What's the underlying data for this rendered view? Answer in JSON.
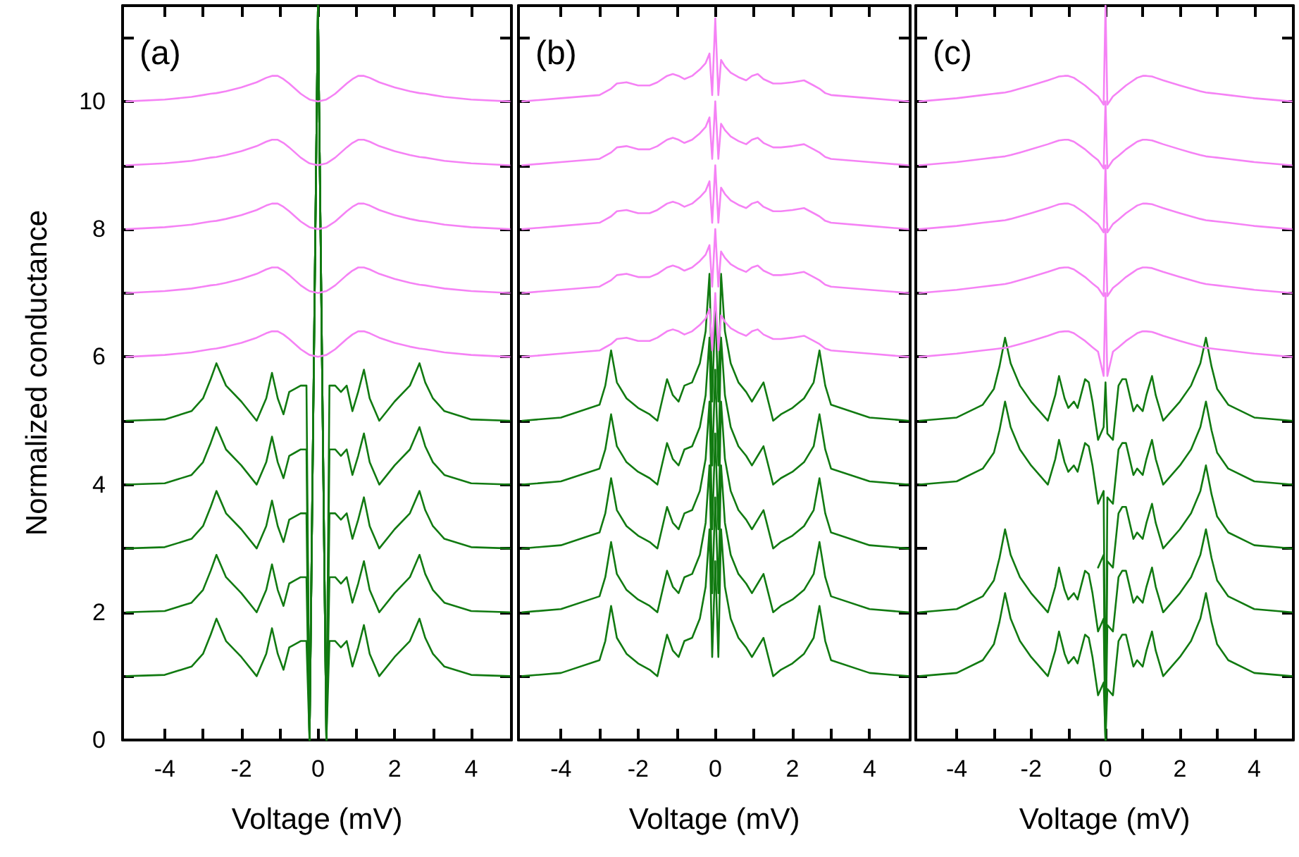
{
  "chart_data": [
    {
      "type": "line",
      "xlabel": "Voltage (mV)",
      "ylabel": "Normalized conductance",
      "annotations": [
        "(a)"
      ],
      "marker": "none",
      "line_style": "solid",
      "xlim": [
        -5.1,
        5.05
      ],
      "ylim": [
        0,
        11.5
      ],
      "xticks": [
        -4,
        {
          "value": -3,
          "label": null
        },
        -2,
        {
          "value": -1,
          "label": null
        },
        0,
        {
          "value": 1,
          "label": null
        },
        2,
        {
          "value": 3,
          "label": null
        },
        4
      ],
      "yticks": [
        0,
        {
          "value": 1,
          "label": null
        },
        2,
        {
          "value": 3,
          "label": null
        },
        4,
        {
          "value": 5,
          "label": null
        },
        6,
        {
          "value": 7,
          "label": null
        },
        8,
        {
          "value": 9,
          "label": null
        },
        10,
        {
          "value": 11,
          "label": null
        }
      ],
      "x": [
        -5,
        -4,
        -3.3,
        -3,
        -2.8,
        -2.65,
        -2.4,
        -2,
        -1.6,
        -1.35,
        -1.2,
        -1.05,
        -0.9,
        -0.75,
        -0.6,
        -0.45,
        -0.3,
        -0.22,
        0,
        0.22,
        0.3,
        0.45,
        0.6,
        0.75,
        0.9,
        1.05,
        1.2,
        1.35,
        1.6,
        2,
        2.4,
        2.65,
        2.8,
        3,
        3.3,
        4,
        5
      ],
      "series": [
        {
          "color": "#117a11",
          "values": [
            1,
            1.02,
            1.15,
            1.35,
            1.65,
            1.9,
            1.55,
            1.3,
            1,
            1.35,
            1.75,
            1.35,
            1.1,
            1.45,
            1.5,
            1.55,
            1.55,
            0,
            11.5,
            0,
            1.55,
            1.55,
            1.45,
            1.55,
            1.15,
            1.45,
            1.8,
            1.35,
            1,
            1.3,
            1.55,
            1.9,
            1.6,
            1.35,
            1.15,
            1.02,
            1
          ]
        },
        {
          "color": "#117a11",
          "values": [
            2,
            2.02,
            2.15,
            2.35,
            2.65,
            2.9,
            2.55,
            2.3,
            2,
            2.35,
            2.75,
            2.35,
            2.1,
            2.45,
            2.5,
            2.55,
            2.55,
            0,
            11.5,
            0,
            2.55,
            2.55,
            2.45,
            2.55,
            2.15,
            2.45,
            2.8,
            2.35,
            2,
            2.3,
            2.55,
            2.9,
            2.6,
            2.35,
            2.15,
            2.02,
            2
          ]
        },
        {
          "color": "#117a11",
          "values": [
            3,
            3.02,
            3.15,
            3.35,
            3.65,
            3.9,
            3.55,
            3.3,
            3,
            3.35,
            3.75,
            3.35,
            3.1,
            3.45,
            3.5,
            3.55,
            3.55,
            0,
            11.5,
            0,
            3.55,
            3.55,
            3.45,
            3.55,
            3.15,
            3.45,
            3.8,
            3.35,
            3,
            3.3,
            3.55,
            3.9,
            3.6,
            3.35,
            3.15,
            3.02,
            3
          ]
        },
        {
          "color": "#117a11",
          "values": [
            4,
            4.02,
            4.15,
            4.35,
            4.65,
            4.9,
            4.55,
            4.3,
            4,
            4.35,
            4.75,
            4.35,
            4.1,
            4.45,
            4.5,
            4.55,
            4.55,
            0,
            11.5,
            0,
            4.55,
            4.55,
            4.45,
            4.55,
            4.15,
            4.45,
            4.8,
            4.35,
            4,
            4.3,
            4.55,
            4.9,
            4.6,
            4.35,
            4.15,
            4.02,
            4
          ]
        },
        {
          "color": "#117a11",
          "values": [
            5,
            5.02,
            5.15,
            5.35,
            5.65,
            5.9,
            5.55,
            5.3,
            5,
            5.35,
            5.75,
            5.35,
            5.1,
            5.45,
            5.5,
            5.55,
            5.55,
            0,
            11.5,
            0,
            5.55,
            5.55,
            5.45,
            5.55,
            5.15,
            5.45,
            5.8,
            5.35,
            5,
            5.3,
            5.55,
            5.9,
            5.6,
            5.35,
            5.15,
            5.02,
            5
          ]
        },
        {
          "color": "#f582f5",
          "values": [
            6,
            6.03,
            6.07,
            6.1,
            6.12,
            6.13,
            6.16,
            6.22,
            6.3,
            6.37,
            6.4,
            6.4,
            6.35,
            6.28,
            6.2,
            6.12,
            6.06,
            6.03,
            6,
            6.03,
            6.06,
            6.12,
            6.2,
            6.28,
            6.35,
            6.4,
            6.4,
            6.37,
            6.3,
            6.22,
            6.16,
            6.13,
            6.12,
            6.1,
            6.07,
            6.03,
            6
          ]
        },
        {
          "color": "#f582f5",
          "values": [
            7,
            7.03,
            7.07,
            7.1,
            7.12,
            7.13,
            7.16,
            7.22,
            7.3,
            7.37,
            7.4,
            7.4,
            7.35,
            7.28,
            7.2,
            7.12,
            7.06,
            7.03,
            7,
            7.03,
            7.06,
            7.12,
            7.2,
            7.28,
            7.35,
            7.4,
            7.4,
            7.37,
            7.3,
            7.22,
            7.16,
            7.13,
            7.12,
            7.1,
            7.07,
            7.03,
            7
          ]
        },
        {
          "color": "#f582f5",
          "values": [
            8,
            8.03,
            8.07,
            8.1,
            8.12,
            8.13,
            8.16,
            8.22,
            8.3,
            8.37,
            8.4,
            8.4,
            8.35,
            8.28,
            8.2,
            8.12,
            8.06,
            8.03,
            8,
            8.03,
            8.06,
            8.12,
            8.2,
            8.28,
            8.35,
            8.4,
            8.4,
            8.37,
            8.3,
            8.22,
            8.16,
            8.13,
            8.12,
            8.1,
            8.07,
            8.03,
            8
          ]
        },
        {
          "color": "#f582f5",
          "values": [
            9,
            9.03,
            9.07,
            9.1,
            9.12,
            9.13,
            9.16,
            9.22,
            9.3,
            9.37,
            9.4,
            9.4,
            9.35,
            9.28,
            9.2,
            9.12,
            9.06,
            9.03,
            9,
            9.03,
            9.06,
            9.12,
            9.2,
            9.28,
            9.35,
            9.4,
            9.4,
            9.37,
            9.3,
            9.22,
            9.16,
            9.13,
            9.12,
            9.1,
            9.07,
            9.03,
            9
          ]
        },
        {
          "color": "#f582f5",
          "values": [
            10,
            10.03,
            10.07,
            10.1,
            10.12,
            10.13,
            10.16,
            10.22,
            10.3,
            10.37,
            10.4,
            10.4,
            10.35,
            10.28,
            10.2,
            10.12,
            10.06,
            10.03,
            10,
            10.03,
            10.06,
            10.12,
            10.2,
            10.28,
            10.35,
            10.4,
            10.4,
            10.37,
            10.3,
            10.22,
            10.16,
            10.13,
            10.12,
            10.1,
            10.07,
            10.03,
            10
          ]
        }
      ]
    },
    {
      "type": "line",
      "xlabel": "Voltage (mV)",
      "annotations": [
        "(b)"
      ],
      "marker": "none",
      "line_style": "solid",
      "tick_labels": "x",
      "xlim": [
        -5.1,
        5.05
      ],
      "ylim": [
        0,
        11.5
      ],
      "xticks": [
        -4,
        {
          "value": -3,
          "label": null
        },
        -2,
        {
          "value": -1,
          "label": null
        },
        0,
        {
          "value": 1,
          "label": null
        },
        2,
        {
          "value": 3,
          "label": null
        },
        4
      ],
      "yticks": [
        0,
        {
          "value": 1,
          "label": null
        },
        2,
        {
          "value": 3,
          "label": null
        },
        4,
        {
          "value": 5,
          "label": null
        },
        6,
        {
          "value": 7,
          "label": null
        },
        8,
        {
          "value": 9,
          "label": null
        },
        10,
        {
          "value": 11,
          "label": null
        }
      ],
      "x": [
        -5,
        -4,
        -3,
        -2.85,
        -2.7,
        -2.55,
        -2.3,
        -2,
        -1.7,
        -1.5,
        -1.25,
        -1.1,
        -0.95,
        -0.8,
        -0.6,
        -0.4,
        -0.25,
        -0.15,
        -0.08,
        0,
        0.08,
        0.15,
        0.25,
        0.4,
        0.6,
        0.8,
        0.95,
        1.1,
        1.25,
        1.5,
        1.7,
        2,
        2.3,
        2.55,
        2.7,
        2.85,
        3,
        4,
        5
      ],
      "series": [
        {
          "color": "#117a11",
          "values": [
            1,
            1.05,
            1.25,
            1.55,
            2.1,
            1.6,
            1.35,
            1.2,
            1.1,
            1,
            1.65,
            1.4,
            1.3,
            1.55,
            1.6,
            1.9,
            2.4,
            3.3,
            1.3,
            2.8,
            1.3,
            3.3,
            2.4,
            1.9,
            1.6,
            1.45,
            1.3,
            1.45,
            1.6,
            1,
            1.1,
            1.2,
            1.35,
            1.6,
            2.1,
            1.55,
            1.25,
            1.05,
            1
          ]
        },
        {
          "color": "#117a11",
          "values": [
            2,
            2.05,
            2.25,
            2.55,
            3.1,
            2.6,
            2.35,
            2.2,
            2.1,
            2,
            2.65,
            2.4,
            2.3,
            2.55,
            2.6,
            2.9,
            3.4,
            4.3,
            2.3,
            3.8,
            2.3,
            4.3,
            3.4,
            2.9,
            2.6,
            2.45,
            2.3,
            2.45,
            2.6,
            2,
            2.1,
            2.2,
            2.35,
            2.6,
            3.1,
            2.55,
            2.25,
            2.05,
            2
          ]
        },
        {
          "color": "#117a11",
          "values": [
            3,
            3.05,
            3.25,
            3.55,
            4.1,
            3.6,
            3.35,
            3.2,
            3.1,
            3,
            3.65,
            3.4,
            3.3,
            3.55,
            3.6,
            3.9,
            4.4,
            5.3,
            3.3,
            4.8,
            3.3,
            5.3,
            4.4,
            3.9,
            3.6,
            3.45,
            3.3,
            3.45,
            3.6,
            3,
            3.1,
            3.2,
            3.35,
            3.6,
            4.1,
            3.55,
            3.25,
            3.05,
            3
          ]
        },
        {
          "color": "#117a11",
          "values": [
            4,
            4.05,
            4.25,
            4.55,
            5.1,
            4.6,
            4.35,
            4.2,
            4.1,
            4,
            4.65,
            4.4,
            4.3,
            4.55,
            4.6,
            4.9,
            5.4,
            6.3,
            4.3,
            5.8,
            4.3,
            6.3,
            5.4,
            4.9,
            4.6,
            4.45,
            4.3,
            4.45,
            4.6,
            4,
            4.1,
            4.2,
            4.35,
            4.6,
            5.1,
            4.55,
            4.25,
            4.05,
            4
          ]
        },
        {
          "color": "#117a11",
          "values": [
            5,
            5.05,
            5.25,
            5.55,
            6.1,
            5.6,
            5.35,
            5.2,
            5.1,
            5,
            5.65,
            5.4,
            5.3,
            5.55,
            5.6,
            5.9,
            6.4,
            7.3,
            5.3,
            6.8,
            5.3,
            7.3,
            6.4,
            5.9,
            5.6,
            5.45,
            5.3,
            5.45,
            5.6,
            5,
            5.1,
            5.2,
            5.35,
            5.6,
            6.1,
            5.55,
            5.25,
            5.05,
            5
          ]
        },
        {
          "color": "#f582f5",
          "values": [
            6,
            6.05,
            6.1,
            6.15,
            6.2,
            6.28,
            6.3,
            6.25,
            6.25,
            6.3,
            6.4,
            6.43,
            6.4,
            6.35,
            6.4,
            6.5,
            6.6,
            6.75,
            6.1,
            7,
            6.1,
            6.65,
            6.55,
            6.45,
            6.38,
            6.33,
            6.4,
            6.43,
            6.35,
            6.28,
            6.28,
            6.3,
            6.33,
            6.25,
            6.2,
            6.13,
            6.1,
            6.05,
            6
          ]
        },
        {
          "color": "#f582f5",
          "values": [
            7,
            7.05,
            7.1,
            7.15,
            7.2,
            7.28,
            7.3,
            7.25,
            7.25,
            7.3,
            7.4,
            7.43,
            7.4,
            7.35,
            7.4,
            7.5,
            7.6,
            7.75,
            7.1,
            8,
            7.1,
            7.65,
            7.55,
            7.45,
            7.38,
            7.33,
            7.4,
            7.43,
            7.35,
            7.28,
            7.28,
            7.3,
            7.33,
            7.25,
            7.2,
            7.13,
            7.1,
            7.05,
            7
          ]
        },
        {
          "color": "#f582f5",
          "values": [
            8,
            8.05,
            8.1,
            8.15,
            8.2,
            8.28,
            8.3,
            8.25,
            8.25,
            8.3,
            8.4,
            8.43,
            8.4,
            8.35,
            8.4,
            8.5,
            8.6,
            8.75,
            8.1,
            9,
            8.1,
            8.65,
            8.55,
            8.45,
            8.38,
            8.33,
            8.4,
            8.43,
            8.35,
            8.28,
            8.28,
            8.3,
            8.33,
            8.25,
            8.2,
            8.13,
            8.1,
            8.05,
            8
          ]
        },
        {
          "color": "#f582f5",
          "values": [
            9,
            9.05,
            9.1,
            9.15,
            9.2,
            9.28,
            9.3,
            9.25,
            9.25,
            9.3,
            9.4,
            9.43,
            9.4,
            9.35,
            9.4,
            9.5,
            9.6,
            9.75,
            9.1,
            10,
            9.1,
            9.65,
            9.55,
            9.45,
            9.38,
            9.33,
            9.4,
            9.43,
            9.35,
            9.28,
            9.28,
            9.3,
            9.33,
            9.25,
            9.2,
            9.13,
            9.1,
            9.05,
            9
          ]
        },
        {
          "color": "#f582f5",
          "values": [
            10,
            10.05,
            10.1,
            10.15,
            10.2,
            10.28,
            10.3,
            10.25,
            10.25,
            10.3,
            10.4,
            10.43,
            10.4,
            10.35,
            10.4,
            10.5,
            10.6,
            10.75,
            10.1,
            11.3,
            10.1,
            10.65,
            10.55,
            10.45,
            10.38,
            10.33,
            10.4,
            10.43,
            10.35,
            10.28,
            10.28,
            10.3,
            10.33,
            10.25,
            10.2,
            10.13,
            10.1,
            10.05,
            10
          ]
        }
      ]
    },
    {
      "type": "line",
      "xlabel": "Voltage (mV)",
      "annotations": [
        "(c)"
      ],
      "marker": "none",
      "line_style": "solid",
      "tick_labels": "x",
      "xlim": [
        -5.1,
        5.05
      ],
      "ylim": [
        0,
        11.5
      ],
      "xticks": [
        -4,
        {
          "value": -3,
          "label": null
        },
        -2,
        {
          "value": -1,
          "label": null
        },
        0,
        {
          "value": 1,
          "label": null
        },
        2,
        {
          "value": 3,
          "label": null
        },
        4
      ],
      "yticks": [
        0,
        {
          "value": 1,
          "label": null
        },
        2,
        {
          "value": 3,
          "label": null
        },
        4,
        {
          "value": 5,
          "label": null
        },
        6,
        {
          "value": 7,
          "label": null
        },
        8,
        {
          "value": 9,
          "label": null
        },
        10,
        {
          "value": 11,
          "label": null
        }
      ],
      "x": [
        -5,
        -4,
        -3.3,
        -3,
        -2.85,
        -2.7,
        -2.55,
        -2.3,
        -2,
        -1.55,
        -1.35,
        -1.25,
        -1.1,
        -1,
        -0.85,
        -0.75,
        -0.55,
        -0.45,
        -0.35,
        -0.2,
        -0.05,
        0,
        0.05,
        0.2,
        0.35,
        0.45,
        0.55,
        0.75,
        0.85,
        1,
        1.1,
        1.25,
        1.35,
        1.55,
        2,
        2.3,
        2.55,
        2.7,
        2.85,
        3,
        3.3,
        4,
        5
      ],
      "series": [
        {
          "color": "#117a11",
          "values": [
            1,
            1.05,
            1.25,
            1.5,
            1.85,
            2.3,
            1.9,
            1.55,
            1.3,
            1,
            1.4,
            1.7,
            1.35,
            1.2,
            1.3,
            1.2,
            1.65,
            1.6,
            1.3,
            0.7,
            0.9,
            0,
            0.8,
            0.7,
            1.55,
            1.65,
            1.65,
            1.15,
            1.25,
            1.15,
            1.4,
            1.7,
            1.4,
            1,
            1.3,
            1.55,
            1.9,
            2.3,
            1.85,
            1.5,
            1.25,
            1.05,
            1
          ]
        },
        {
          "color": "#117a11",
          "values": [
            2,
            2.05,
            2.25,
            2.5,
            2.85,
            3.3,
            2.9,
            2.55,
            2.3,
            2,
            2.4,
            2.7,
            2.35,
            2.2,
            2.3,
            2.2,
            2.65,
            2.6,
            2.3,
            1.7,
            1.9,
            0,
            1.8,
            1.7,
            2.55,
            2.65,
            2.65,
            2.15,
            2.25,
            2.15,
            2.4,
            2.7,
            2.4,
            2,
            2.3,
            2.55,
            2.9,
            3.3,
            2.85,
            2.5,
            2.25,
            2.05,
            2
          ]
        },
        {
          "color": "#117a11",
          "values": [
            null,
            null,
            null,
            null,
            null,
            null,
            null,
            null,
            null,
            null,
            null,
            null,
            null,
            null,
            null,
            null,
            null,
            null,
            null,
            2.7,
            2.9,
            0,
            2.8,
            2.7,
            3.55,
            3.65,
            3.65,
            3.15,
            3.25,
            3.15,
            3.4,
            3.7,
            3.4,
            3,
            3.3,
            3.55,
            3.9,
            4.3,
            3.85,
            3.5,
            3.25,
            3.05,
            3
          ]
        },
        {
          "color": "#117a11",
          "values": [
            4,
            4.05,
            4.25,
            4.5,
            4.85,
            5.3,
            4.9,
            4.55,
            4.3,
            4,
            4.4,
            4.7,
            4.35,
            4.2,
            4.3,
            4.2,
            4.65,
            4.6,
            4.3,
            3.7,
            3.9,
            0,
            3.8,
            3.7,
            4.55,
            4.65,
            4.65,
            4.15,
            4.25,
            4.15,
            4.4,
            4.7,
            4.4,
            4,
            4.3,
            4.55,
            4.9,
            5.3,
            4.85,
            4.5,
            4.25,
            4.05,
            4
          ]
        },
        {
          "color": "#117a11",
          "values": [
            5,
            5.05,
            5.25,
            5.5,
            5.85,
            6.3,
            5.9,
            5.55,
            5.3,
            5,
            5.4,
            5.7,
            5.35,
            5.2,
            5.3,
            5.2,
            5.65,
            5.6,
            5.3,
            4.7,
            4.9,
            5.6,
            4.8,
            4.7,
            5.55,
            5.65,
            5.65,
            5.15,
            5.25,
            5.15,
            5.4,
            5.7,
            5.4,
            5,
            5.3,
            5.55,
            5.9,
            6.3,
            5.85,
            5.5,
            5.25,
            5.05,
            5
          ]
        },
        {
          "color": "#f582f5",
          "values": [
            6,
            6.05,
            6.1,
            6.12,
            6.13,
            6.14,
            6.16,
            6.2,
            6.25,
            6.33,
            6.37,
            6.39,
            6.4,
            6.4,
            6.37,
            6.33,
            6.25,
            6.2,
            6.15,
            6.08,
            5.7,
            7,
            5.7,
            6.08,
            6.15,
            6.2,
            6.25,
            6.33,
            6.37,
            6.4,
            6.4,
            6.39,
            6.37,
            6.33,
            6.25,
            6.2,
            6.16,
            6.14,
            6.13,
            6.12,
            6.1,
            6.05,
            6
          ]
        },
        {
          "color": "#f582f5",
          "values": [
            7,
            7.05,
            7.1,
            7.12,
            7.13,
            7.14,
            7.16,
            7.2,
            7.25,
            7.33,
            7.37,
            7.39,
            7.4,
            7.4,
            7.37,
            7.33,
            7.25,
            7.2,
            7.15,
            7.08,
            6.95,
            8,
            6.95,
            7.08,
            7.15,
            7.2,
            7.25,
            7.33,
            7.37,
            7.4,
            7.4,
            7.39,
            7.37,
            7.33,
            7.25,
            7.2,
            7.16,
            7.14,
            7.13,
            7.12,
            7.1,
            7.05,
            7
          ]
        },
        {
          "color": "#f582f5",
          "values": [
            8,
            8.05,
            8.1,
            8.12,
            8.13,
            8.14,
            8.16,
            8.2,
            8.25,
            8.33,
            8.37,
            8.39,
            8.4,
            8.4,
            8.37,
            8.33,
            8.25,
            8.2,
            8.15,
            8.08,
            7.95,
            9,
            7.95,
            8.08,
            8.15,
            8.2,
            8.25,
            8.33,
            8.37,
            8.4,
            8.4,
            8.39,
            8.37,
            8.33,
            8.25,
            8.2,
            8.16,
            8.14,
            8.13,
            8.12,
            8.1,
            8.05,
            8
          ]
        },
        {
          "color": "#f582f5",
          "values": [
            9,
            9.05,
            9.1,
            9.12,
            9.13,
            9.14,
            9.16,
            9.2,
            9.25,
            9.33,
            9.37,
            9.39,
            9.4,
            9.4,
            9.37,
            9.33,
            9.25,
            9.2,
            9.15,
            9.08,
            8.95,
            10,
            8.95,
            9.08,
            9.15,
            9.2,
            9.25,
            9.33,
            9.37,
            9.4,
            9.4,
            9.39,
            9.37,
            9.33,
            9.25,
            9.2,
            9.16,
            9.14,
            9.13,
            9.12,
            9.1,
            9.05,
            9
          ]
        },
        {
          "color": "#f582f5",
          "values": [
            10,
            10.05,
            10.1,
            10.12,
            10.13,
            10.14,
            10.16,
            10.2,
            10.25,
            10.33,
            10.37,
            10.39,
            10.4,
            10.4,
            10.37,
            10.33,
            10.25,
            10.2,
            10.15,
            10.08,
            9.95,
            11.5,
            9.95,
            10.08,
            10.15,
            10.2,
            10.25,
            10.33,
            10.37,
            10.4,
            10.4,
            10.39,
            10.37,
            10.33,
            10.25,
            10.2,
            10.16,
            10.14,
            10.13,
            10.12,
            10.1,
            10.05,
            10
          ]
        }
      ]
    }
  ]
}
